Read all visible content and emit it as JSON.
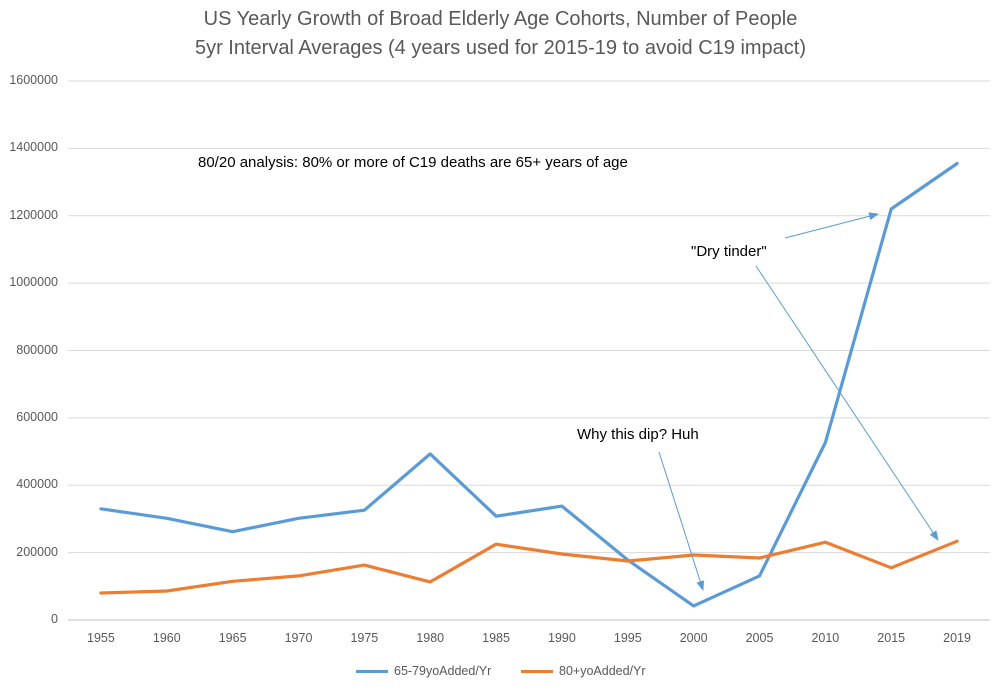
{
  "chart_data": {
    "type": "line",
    "title": "US Yearly Growth of Broad Elderly Age Cohorts, Number of People",
    "subtitle": "5yr Interval Averages (4 years used for 2015-19 to avoid C19 impact)",
    "categories": [
      "1955",
      "1960",
      "1965",
      "1970",
      "1975",
      "1980",
      "1985",
      "1990",
      "1995",
      "2000",
      "2005",
      "2010",
      "2015",
      "2019"
    ],
    "series": [
      {
        "name": "65-79yoAdded/Yr",
        "color": "#5B9BD5",
        "values": [
          330000,
          302000,
          262000,
          302000,
          326000,
          493000,
          308000,
          338000,
          178000,
          42000,
          131000,
          527000,
          1220000,
          1355000
        ]
      },
      {
        "name": "80+yoAdded/Yr",
        "color": "#ED7D31",
        "values": [
          80000,
          86000,
          115000,
          131000,
          163000,
          113000,
          225000,
          196000,
          175000,
          193000,
          184000,
          231000,
          155000,
          234000
        ]
      }
    ],
    "ylim": [
      0,
      1600000
    ],
    "yticks": [
      "0",
      "200000",
      "400000",
      "600000",
      "800000",
      "1000000",
      "1200000",
      "1400000",
      "1600000"
    ],
    "grid": true,
    "legend": "bottom",
    "annotations": {
      "eighty_twenty": "80/20 analysis: 80% or more of C19 deaths are 65+ years of age",
      "dry_tinder": "\"Dry tinder\"",
      "dip": "Why this dip? Huh"
    }
  }
}
